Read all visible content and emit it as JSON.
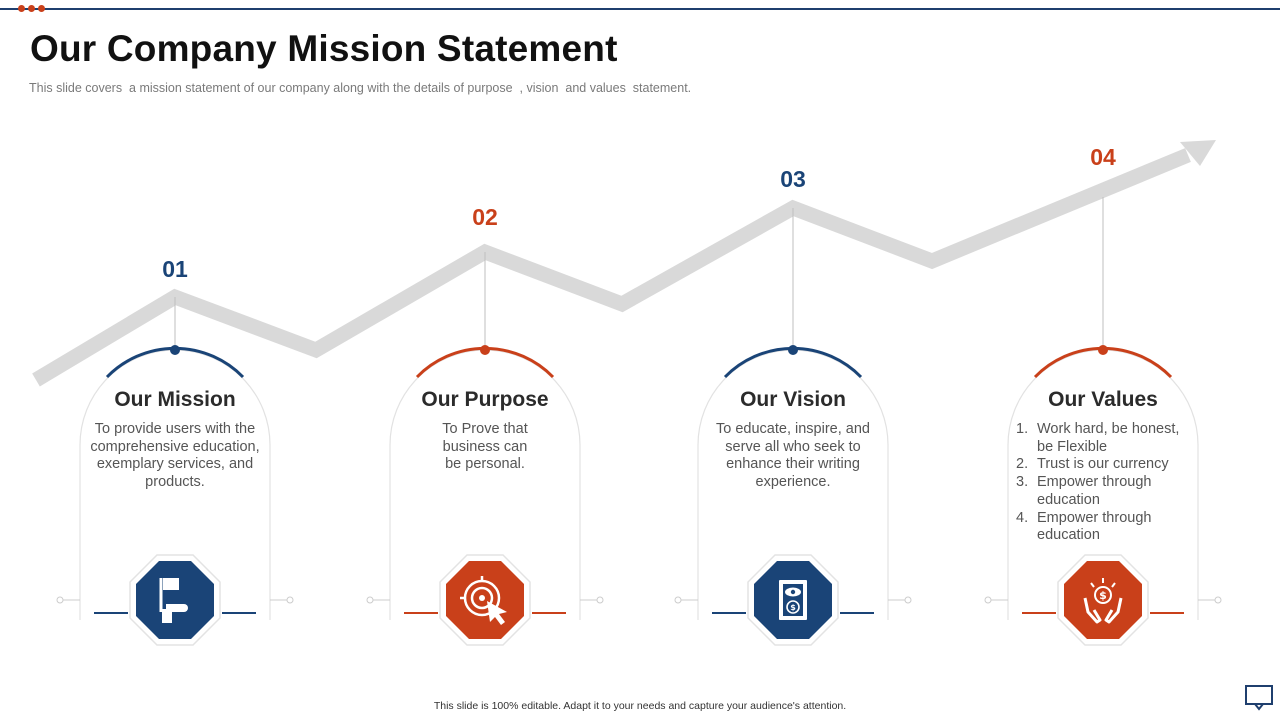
{
  "slide": {
    "title": "Our Company Mission Statement",
    "subtitle": "This slide covers  a mission statement of our company along with the details of purpose  , vision  and values  statement.",
    "footer": "This slide is 100% editable.  Adapt it to your needs and capture your audience's attention."
  },
  "colors": {
    "blue": "#1a4477",
    "orange": "#c9401a",
    "gray": "#d9d9d9"
  },
  "cards": [
    {
      "number": "01",
      "title": "Our Mission",
      "description": "To provide users with the comprehensive education, exemplary services, and products.",
      "icon": "hand-flag-icon"
    },
    {
      "number": "02",
      "title": "Our Purpose",
      "description": "To Prove that business can be personal.",
      "icon": "target-cursor-icon"
    },
    {
      "number": "03",
      "title": "Our Vision",
      "description": "To educate, inspire, and serve all who seek to enhance their writing experience.",
      "icon": "eye-document-icon"
    },
    {
      "number": "04",
      "title": "Our Values",
      "values": [
        "Work hard, be honest, be Flexible",
        "Trust is our currency",
        "Empower through education",
        "Empower through education"
      ],
      "icon": "hands-dollar-icon"
    }
  ]
}
